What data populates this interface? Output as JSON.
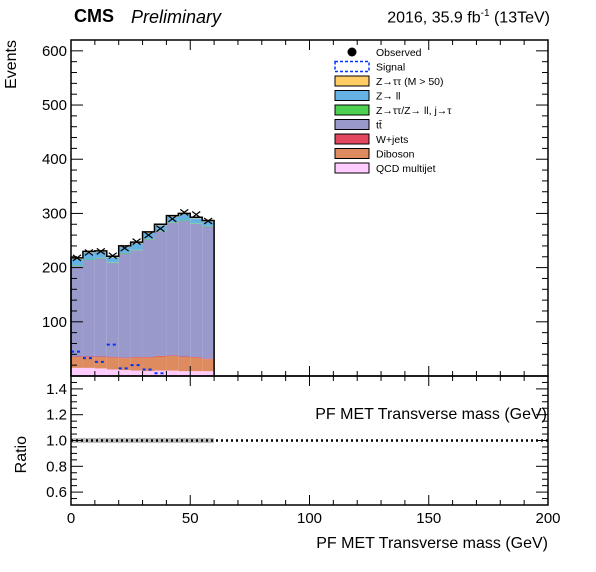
{
  "header": {
    "experiment": "CMS",
    "status": "Preliminary",
    "lumi_prefix": "2016, 35.9 fb",
    "lumi_exp": "-1",
    "lumi_suffix": " (13TeV)"
  },
  "chart_data": [
    {
      "type": "area",
      "panel": "main",
      "stacked": true,
      "ylabel": "Events",
      "xlim": [
        0,
        200
      ],
      "ylim": [
        0,
        620
      ],
      "yticks": [
        100,
        200,
        300,
        400,
        500,
        600
      ],
      "x_bin_edges": [
        0,
        5,
        10,
        15,
        20,
        25,
        30,
        35,
        40,
        45,
        50,
        55,
        60
      ],
      "series": [
        {
          "name": "QCD multijet",
          "color": "#ffccff",
          "values": [
            15,
            15,
            14,
            12,
            11,
            10,
            9,
            10,
            10,
            9,
            9,
            9
          ]
        },
        {
          "name": "Diboson",
          "color": "#de8b5f",
          "values": [
            20,
            20,
            21,
            22,
            22,
            24,
            25,
            26,
            27,
            26,
            25,
            22
          ]
        },
        {
          "name": "W+jets",
          "color": "#e2485f",
          "values": [
            1,
            1,
            1,
            1,
            1,
            1,
            1,
            1,
            1,
            1,
            1,
            1
          ]
        },
        {
          "name": "tt̄",
          "color": "#9999cc",
          "values": [
            167,
            178,
            181,
            174,
            192,
            197,
            217,
            230,
            245,
            250,
            246,
            244
          ]
        },
        {
          "name": "Z→ττ/Z→ ll, j→τ",
          "color": "#4cd250",
          "values": [
            1,
            1,
            1,
            1,
            1,
            1,
            1,
            1,
            1,
            1,
            1,
            1
          ]
        },
        {
          "name": "Z→ ll",
          "color": "#67b2e4",
          "values": [
            12,
            13,
            11,
            9,
            11,
            12,
            11,
            10,
            10,
            11,
            9,
            8
          ]
        },
        {
          "name": "Z→ττ (M > 50)",
          "color": "#ffcc66",
          "values": [
            2,
            2,
            2,
            2,
            2,
            2,
            2,
            2,
            2,
            2,
            2,
            2
          ]
        }
      ],
      "signal": {
        "name": "Signal",
        "color": "#0033ff",
        "values": [
          45,
          33,
          26,
          58,
          14,
          20,
          12,
          5,
          0,
          0,
          0,
          0
        ]
      },
      "observed": {
        "name": "Observed",
        "values": [
          218,
          228,
          230,
          222,
          236,
          248,
          260,
          272,
          290,
          302,
          298,
          286
        ]
      },
      "legend_position": "top-right"
    },
    {
      "type": "line",
      "panel": "ratio",
      "ylabel": "Ratio",
      "xlabel": "PF MET Transverse mass (GeV)",
      "annotation": "PF MET Transverse mass (GeV)",
      "xlim": [
        0,
        200
      ],
      "ylim": [
        0.5,
        1.5
      ],
      "yticks": [
        "0.6",
        "0.8",
        "1.0",
        "1.2",
        "1.4"
      ],
      "xticks": [
        "0",
        "50",
        "100",
        "150",
        "200"
      ],
      "reference_line": 1.0,
      "uncertainty_band": {
        "x_range": [
          0,
          60
        ],
        "half_width": 0.02
      }
    }
  ]
}
